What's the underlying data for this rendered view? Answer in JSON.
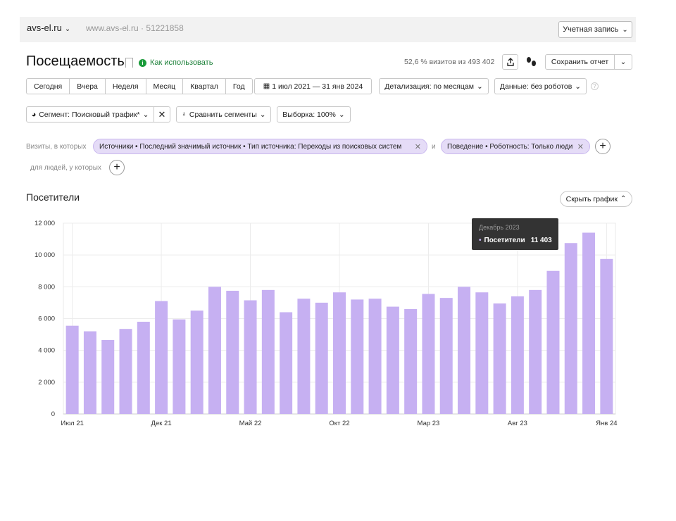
{
  "header": {
    "site": "avs-el.ru",
    "site_url": "www.avs-el.ru",
    "counter_sep": "·",
    "counter_id": "51221858",
    "account_label": "Учетная запись"
  },
  "page": {
    "title": "Посещаемость",
    "howto_label": "Как использовать",
    "visits_info": "52,6 % визитов из 493 402",
    "save_report_label": "Сохранить отчет"
  },
  "periods": [
    "Сегодня",
    "Вчера",
    "Неделя",
    "Месяц",
    "Квартал",
    "Год"
  ],
  "date_range": "1 июл 2021 — 31 янв 2024",
  "detail_label": "Детализация: по месяцам",
  "data_label": "Данные: без роботов",
  "segment_label": "Сегмент: Поисковый трафик*",
  "compare_label": "Сравнить сегменты",
  "sample_label": "Выборка: 100%",
  "filters": {
    "visits_label": "Визиты, в которых",
    "chip1": "Источники • Последний значимый источник • Тип источника: Переходы из поисковых систем",
    "and_label": "и",
    "chip2": "Поведение • Роботность: Только люди",
    "people_label": "для людей, у которых"
  },
  "section": {
    "title": "Посетители",
    "hide_chart_label": "Скрыть график"
  },
  "tooltip": {
    "month": "Декабрь 2023",
    "series": "Посетители",
    "value": "11 403"
  },
  "colors": {
    "bar": "#c6b0f2",
    "accent_green": "#1a9b3a"
  },
  "chart_data": {
    "type": "bar",
    "x_tick_labels": [
      "Июл 21",
      "Дек 21",
      "Май 22",
      "Окт 22",
      "Мар 23",
      "Авг 23",
      "Янв 24"
    ],
    "x_tick_label_indices": [
      0,
      5,
      10,
      15,
      20,
      25,
      30
    ],
    "y_tick_labels": [
      "0",
      "2 000",
      "4 000",
      "6 000",
      "8 000",
      "10 000",
      "12 000"
    ],
    "ylim": [
      0,
      12000
    ],
    "grid": true,
    "series": [
      {
        "name": "Посетители",
        "values": [
          5550,
          5200,
          4650,
          5350,
          5800,
          7100,
          5950,
          6500,
          8000,
          7750,
          7150,
          7800,
          6400,
          7250,
          7000,
          7650,
          7200,
          7250,
          6750,
          6600,
          7550,
          7300,
          8000,
          7650,
          6950,
          7400,
          7800,
          9000,
          10750,
          11403,
          9750
        ]
      }
    ]
  }
}
